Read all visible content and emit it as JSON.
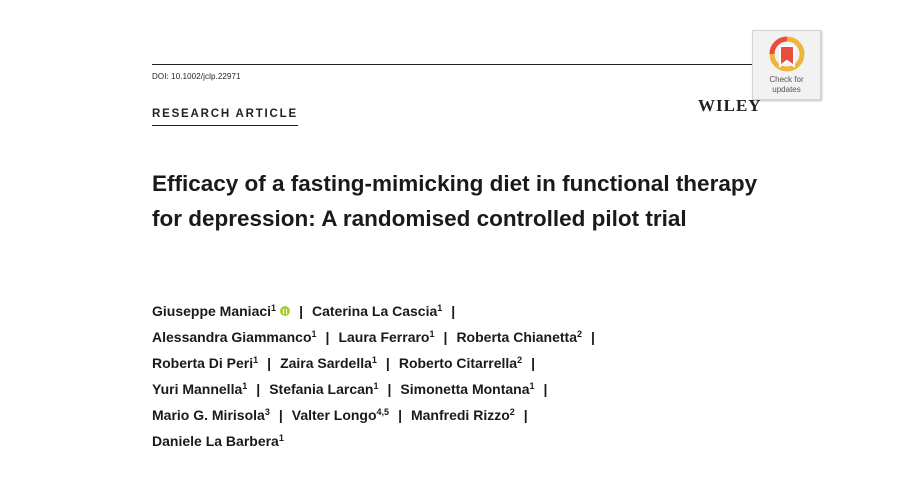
{
  "header": {
    "doi": "DOI: 10.1002/jclp.22971",
    "section_label": "RESEARCH ARTICLE",
    "publisher": "WILEY",
    "badge": {
      "line1": "Check for",
      "line2": "updates",
      "icon": "bookmark-crossmark-icon"
    }
  },
  "title": "Efficacy of a fasting-mimicking diet in functional therapy for depression: A randomised controlled pilot trial",
  "authors": {
    "lines": [
      [
        {
          "name": "Giuseppe Maniaci",
          "aff": "1",
          "orcid": true
        },
        {
          "name": "Caterina La Cascia",
          "aff": "1"
        }
      ],
      [
        {
          "name": "Alessandra Giammanco",
          "aff": "1"
        },
        {
          "name": "Laura Ferraro",
          "aff": "1"
        },
        {
          "name": "Roberta Chianetta",
          "aff": "2"
        }
      ],
      [
        {
          "name": "Roberta Di Peri",
          "aff": "1"
        },
        {
          "name": "Zaira Sardella",
          "aff": "1"
        },
        {
          "name": "Roberto Citarrella",
          "aff": "2"
        }
      ],
      [
        {
          "name": "Yuri Mannella",
          "aff": "1"
        },
        {
          "name": "Stefania Larcan",
          "aff": "1"
        },
        {
          "name": "Simonetta Montana",
          "aff": "1"
        }
      ],
      [
        {
          "name": "Mario G. Mirisola",
          "aff": "3"
        },
        {
          "name": "Valter Longo",
          "aff": "4,5"
        },
        {
          "name": "Manfredi Rizzo",
          "aff": "2"
        }
      ],
      [
        {
          "name": "Daniele La Barbera",
          "aff": "1"
        }
      ]
    ],
    "trailing_separator": [
      true,
      true,
      true,
      true,
      true,
      false
    ],
    "separator": "|"
  },
  "colors": {
    "orcid": "#a6ce39",
    "text": "#1a1a1a"
  }
}
